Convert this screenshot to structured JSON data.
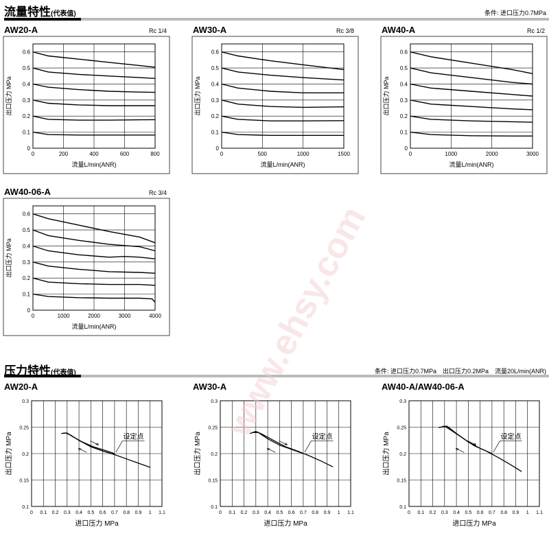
{
  "flow_section": {
    "title": "流量特性",
    "subtitle": "(代表值)",
    "condition": "条件: 进口压力0.7MPa"
  },
  "pressure_section": {
    "title": "压力特性",
    "subtitle": "(代表值)",
    "condition": "条件: 进口压力0.7MPa　出口压力0.2MPa　流量20L/min(ANR)"
  },
  "watermark": "www.ehsy.com",
  "chart_data": [
    {
      "id": "flow-aw20",
      "type": "line",
      "model": "AW20-A",
      "port": "Rc 1/4",
      "xlabel": "流量L/min(ANR)",
      "ylabel": "出口压力 MPa",
      "xlim": [
        0,
        800
      ],
      "ylim": [
        0,
        0.65
      ],
      "xticks": [
        0,
        200,
        400,
        600,
        800
      ],
      "yticks": [
        0,
        0.1,
        0.2,
        0.3,
        0.4,
        0.5,
        0.6
      ],
      "grid": true,
      "series": [
        {
          "points": [
            [
              0,
              0.6
            ],
            [
              100,
              0.575
            ],
            [
              300,
              0.555
            ],
            [
              500,
              0.535
            ],
            [
              700,
              0.515
            ],
            [
              800,
              0.505
            ]
          ]
        },
        {
          "points": [
            [
              0,
              0.5
            ],
            [
              100,
              0.475
            ],
            [
              300,
              0.46
            ],
            [
              500,
              0.45
            ],
            [
              700,
              0.44
            ],
            [
              800,
              0.435
            ]
          ]
        },
        {
          "points": [
            [
              0,
              0.4
            ],
            [
              100,
              0.38
            ],
            [
              300,
              0.365
            ],
            [
              500,
              0.355
            ],
            [
              700,
              0.35
            ],
            [
              800,
              0.348
            ]
          ]
        },
        {
          "points": [
            [
              0,
              0.3
            ],
            [
              100,
              0.28
            ],
            [
              300,
              0.27
            ],
            [
              500,
              0.265
            ],
            [
              700,
              0.265
            ],
            [
              800,
              0.265
            ]
          ]
        },
        {
          "points": [
            [
              0,
              0.2
            ],
            [
              100,
              0.18
            ],
            [
              300,
              0.175
            ],
            [
              500,
              0.175
            ],
            [
              700,
              0.177
            ],
            [
              800,
              0.178
            ]
          ]
        },
        {
          "points": [
            [
              0,
              0.1
            ],
            [
              100,
              0.085
            ],
            [
              300,
              0.082
            ],
            [
              500,
              0.082
            ],
            [
              700,
              0.082
            ],
            [
              800,
              0.082
            ]
          ]
        }
      ]
    },
    {
      "id": "flow-aw30",
      "type": "line",
      "model": "AW30-A",
      "port": "Rc 3/8",
      "xlabel": "流量L/min(ANR)",
      "ylabel": "出口压力 MPa",
      "xlim": [
        0,
        1500
      ],
      "ylim": [
        0,
        0.65
      ],
      "xticks": [
        0,
        500,
        1000,
        1500
      ],
      "yticks": [
        0,
        0.1,
        0.2,
        0.3,
        0.4,
        0.5,
        0.6
      ],
      "grid": true,
      "series": [
        {
          "points": [
            [
              0,
              0.6
            ],
            [
              200,
              0.575
            ],
            [
              600,
              0.545
            ],
            [
              1000,
              0.52
            ],
            [
              1500,
              0.49
            ]
          ]
        },
        {
          "points": [
            [
              0,
              0.5
            ],
            [
              200,
              0.475
            ],
            [
              600,
              0.455
            ],
            [
              1000,
              0.44
            ],
            [
              1500,
              0.425
            ]
          ]
        },
        {
          "points": [
            [
              0,
              0.4
            ],
            [
              200,
              0.375
            ],
            [
              600,
              0.355
            ],
            [
              1000,
              0.345
            ],
            [
              1500,
              0.345
            ]
          ]
        },
        {
          "points": [
            [
              0,
              0.3
            ],
            [
              200,
              0.275
            ],
            [
              600,
              0.26
            ],
            [
              1000,
              0.255
            ],
            [
              1500,
              0.258
            ]
          ]
        },
        {
          "points": [
            [
              0,
              0.2
            ],
            [
              200,
              0.18
            ],
            [
              600,
              0.17
            ],
            [
              1000,
              0.17
            ],
            [
              1500,
              0.172
            ]
          ]
        },
        {
          "points": [
            [
              0,
              0.1
            ],
            [
              200,
              0.085
            ],
            [
              600,
              0.08
            ],
            [
              1000,
              0.08
            ],
            [
              1500,
              0.08
            ]
          ]
        }
      ]
    },
    {
      "id": "flow-aw40",
      "type": "line",
      "model": "AW40-A",
      "port": "Rc 1/2",
      "xlabel": "流量L/min(ANR)",
      "ylabel": "出口压力 MPa",
      "xlim": [
        0,
        3000
      ],
      "ylim": [
        0,
        0.65
      ],
      "xticks": [
        0,
        1000,
        2000,
        3000
      ],
      "yticks": [
        0,
        0.1,
        0.2,
        0.3,
        0.4,
        0.5,
        0.6
      ],
      "grid": true,
      "series": [
        {
          "points": [
            [
              0,
              0.6
            ],
            [
              500,
              0.57
            ],
            [
              1500,
              0.53
            ],
            [
              2500,
              0.49
            ],
            [
              3000,
              0.465
            ]
          ]
        },
        {
          "points": [
            [
              0,
              0.5
            ],
            [
              500,
              0.47
            ],
            [
              1500,
              0.44
            ],
            [
              2500,
              0.41
            ],
            [
              3000,
              0.4
            ]
          ]
        },
        {
          "points": [
            [
              0,
              0.4
            ],
            [
              500,
              0.375
            ],
            [
              1500,
              0.355
            ],
            [
              2500,
              0.335
            ],
            [
              3000,
              0.325
            ]
          ]
        },
        {
          "points": [
            [
              0,
              0.3
            ],
            [
              500,
              0.275
            ],
            [
              1500,
              0.26
            ],
            [
              2500,
              0.245
            ],
            [
              3000,
              0.24
            ]
          ]
        },
        {
          "points": [
            [
              0,
              0.2
            ],
            [
              500,
              0.18
            ],
            [
              1500,
              0.17
            ],
            [
              2500,
              0.165
            ],
            [
              3000,
              0.162
            ]
          ]
        },
        {
          "points": [
            [
              0,
              0.1
            ],
            [
              500,
              0.085
            ],
            [
              1500,
              0.078
            ],
            [
              2500,
              0.076
            ],
            [
              3000,
              0.076
            ]
          ]
        }
      ]
    },
    {
      "id": "flow-aw40-06",
      "type": "line",
      "model": "AW40-06-A",
      "port": "Rc 3/4",
      "xlabel": "流量L/min(ANR)",
      "ylabel": "出口压力 MPa",
      "xlim": [
        0,
        4000
      ],
      "ylim": [
        0,
        0.65
      ],
      "xticks": [
        0,
        1000,
        2000,
        3000,
        4000
      ],
      "yticks": [
        0,
        0.1,
        0.2,
        0.3,
        0.4,
        0.5,
        0.6
      ],
      "grid": true,
      "series": [
        {
          "points": [
            [
              0,
              0.6
            ],
            [
              500,
              0.57
            ],
            [
              1500,
              0.53
            ],
            [
              2500,
              0.49
            ],
            [
              3500,
              0.455
            ],
            [
              4000,
              0.42
            ]
          ]
        },
        {
          "points": [
            [
              0,
              0.5
            ],
            [
              500,
              0.465
            ],
            [
              1500,
              0.435
            ],
            [
              2500,
              0.41
            ],
            [
              3500,
              0.395
            ],
            [
              4000,
              0.37
            ]
          ]
        },
        {
          "points": [
            [
              0,
              0.4
            ],
            [
              500,
              0.37
            ],
            [
              1500,
              0.345
            ],
            [
              2500,
              0.33
            ],
            [
              3000,
              0.335
            ],
            [
              3500,
              0.33
            ],
            [
              4000,
              0.32
            ]
          ]
        },
        {
          "points": [
            [
              0,
              0.3
            ],
            [
              500,
              0.275
            ],
            [
              1500,
              0.255
            ],
            [
              2500,
              0.24
            ],
            [
              3500,
              0.235
            ],
            [
              4000,
              0.23
            ]
          ]
        },
        {
          "points": [
            [
              0,
              0.2
            ],
            [
              500,
              0.175
            ],
            [
              1500,
              0.165
            ],
            [
              2500,
              0.16
            ],
            [
              3500,
              0.16
            ],
            [
              4000,
              0.155
            ]
          ]
        },
        {
          "points": [
            [
              0,
              0.1
            ],
            [
              500,
              0.085
            ],
            [
              1500,
              0.078
            ],
            [
              2500,
              0.075
            ],
            [
              3500,
              0.075
            ],
            [
              3900,
              0.07
            ],
            [
              4000,
              0.05
            ]
          ]
        }
      ]
    },
    {
      "id": "press-aw20",
      "type": "line",
      "model": "AW20-A",
      "xlabel": "进口压力 MPa",
      "ylabel": "出口压力 MPa",
      "xlim": [
        0,
        1.1
      ],
      "ylim": [
        0.1,
        0.3
      ],
      "xticks": [
        "0",
        "0.1",
        "0.2",
        "0.3",
        "0.4",
        "0.5",
        "0.6",
        "0.7",
        "0.8",
        "0.9",
        "1",
        "1.1"
      ],
      "yticks": [
        "0.1",
        "0.15",
        "0.2",
        "0.25",
        "0.3"
      ],
      "grid": true,
      "annotation": "设定点",
      "series": [
        {
          "points": [
            [
              0.25,
              0.238
            ],
            [
              0.29,
              0.239
            ],
            [
              0.33,
              0.235
            ],
            [
              0.4,
              0.225
            ],
            [
              0.5,
              0.213
            ],
            [
              0.6,
              0.205
            ],
            [
              0.7,
              0.198
            ],
            [
              0.8,
              0.19
            ],
            [
              0.9,
              0.182
            ],
            [
              1.0,
              0.174
            ]
          ]
        },
        {
          "points": [
            [
              0.27,
              0.239
            ],
            [
              0.3,
              0.239
            ],
            [
              0.34,
              0.233
            ],
            [
              0.42,
              0.223
            ],
            [
              0.52,
              0.213
            ],
            [
              0.62,
              0.206
            ],
            [
              0.7,
              0.2
            ]
          ]
        }
      ]
    },
    {
      "id": "press-aw30",
      "type": "line",
      "model": "AW30-A",
      "xlabel": "进口压力 MPa",
      "ylabel": "出口压力 MPa",
      "xlim": [
        0,
        1.1
      ],
      "ylim": [
        0.1,
        0.3
      ],
      "xticks": [
        "0",
        "0.1",
        "0.2",
        "0.3",
        "0.4",
        "0.5",
        "0.6",
        "0.7",
        "0.8",
        "0.9",
        "1",
        "1.1"
      ],
      "yticks": [
        "0.1",
        "0.15",
        "0.2",
        "0.25",
        "0.3"
      ],
      "grid": true,
      "annotation": "设定点",
      "series": [
        {
          "points": [
            [
              0.25,
              0.238
            ],
            [
              0.3,
              0.242
            ],
            [
              0.35,
              0.237
            ],
            [
              0.45,
              0.225
            ],
            [
              0.55,
              0.213
            ],
            [
              0.65,
              0.205
            ],
            [
              0.75,
              0.196
            ],
            [
              0.85,
              0.186
            ],
            [
              0.95,
              0.175
            ]
          ]
        },
        {
          "points": [
            [
              0.27,
              0.24
            ],
            [
              0.32,
              0.24
            ],
            [
              0.4,
              0.228
            ],
            [
              0.5,
              0.216
            ],
            [
              0.6,
              0.208
            ],
            [
              0.7,
              0.2
            ]
          ]
        }
      ]
    },
    {
      "id": "press-aw40",
      "type": "line",
      "model": "AW40-A/AW40-06-A",
      "xlabel": "进口压力 MPa",
      "ylabel": "出口压力 MPa",
      "xlim": [
        0,
        1.1
      ],
      "ylim": [
        0.1,
        0.3
      ],
      "xticks": [
        "0",
        "0.1",
        "0.2",
        "0.3",
        "0.4",
        "0.5",
        "0.6",
        "0.7",
        "0.8",
        "0.9",
        "1",
        "1.1"
      ],
      "yticks": [
        "0.1",
        "0.15",
        "0.2",
        "0.25",
        "0.3"
      ],
      "grid": true,
      "annotation": "设定点",
      "series": [
        {
          "points": [
            [
              0.25,
              0.249
            ],
            [
              0.3,
              0.252
            ],
            [
              0.35,
              0.245
            ],
            [
              0.45,
              0.23
            ],
            [
              0.55,
              0.215
            ],
            [
              0.65,
              0.205
            ],
            [
              0.75,
              0.193
            ],
            [
              0.85,
              0.18
            ],
            [
              0.95,
              0.166
            ]
          ]
        },
        {
          "points": [
            [
              0.27,
              0.25
            ],
            [
              0.32,
              0.252
            ],
            [
              0.4,
              0.238
            ],
            [
              0.5,
              0.222
            ],
            [
              0.6,
              0.21
            ],
            [
              0.7,
              0.2
            ]
          ]
        }
      ]
    }
  ]
}
